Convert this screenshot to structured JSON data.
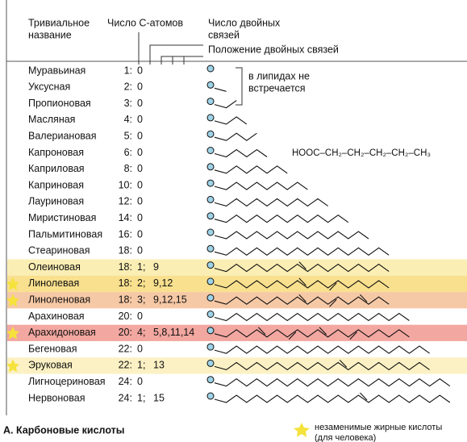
{
  "header": {
    "name_line1": "Тривиальное",
    "name_line2": "название",
    "carbons": "Число С-атомов",
    "double_bonds_line1": "Число двойных",
    "double_bonds_line2": "связей",
    "positions": "Положение двойных связей"
  },
  "table": {
    "rows": [
      {
        "name": "Муравьиная",
        "c": "1:",
        "db": "0",
        "pos": ""
      },
      {
        "name": "Уксусная",
        "c": "2:",
        "db": "0",
        "pos": ""
      },
      {
        "name": "Пропионовая",
        "c": "3:",
        "db": "0",
        "pos": ""
      },
      {
        "name": "Масляная",
        "c": "4:",
        "db": "0",
        "pos": ""
      },
      {
        "name": "Валериановая",
        "c": "5:",
        "db": "0",
        "pos": ""
      },
      {
        "name": "Капроновая",
        "c": "6:",
        "db": "0",
        "pos": ""
      },
      {
        "name": "Каприловая",
        "c": "8:",
        "db": "0",
        "pos": ""
      },
      {
        "name": "Каприновая",
        "c": "10:",
        "db": "0",
        "pos": ""
      },
      {
        "name": "Лауриновая",
        "c": "12:",
        "db": "0",
        "pos": ""
      },
      {
        "name": "Миристиновая",
        "c": "14:",
        "db": "0",
        "pos": ""
      },
      {
        "name": "Пальмитиновая",
        "c": "16:",
        "db": "0",
        "pos": ""
      },
      {
        "name": "Стеариновая",
        "c": "18:",
        "db": "0",
        "pos": ""
      },
      {
        "name": "Олеиновая",
        "c": "18:",
        "db": "1;",
        "pos": "9",
        "highlight": "#fbeeb4"
      },
      {
        "name": "Линолевая",
        "c": "18:",
        "db": "2;",
        "pos": "9,12",
        "highlight": "#f9e08e",
        "essential": true
      },
      {
        "name": "Линоленовая",
        "c": "18:",
        "db": "3;",
        "pos": "9,12,15",
        "highlight": "#f6c9a6",
        "essential": true
      },
      {
        "name": "Арахиновая",
        "c": "20:",
        "db": "0",
        "pos": ""
      },
      {
        "name": "Арахидоновая",
        "c": "20:",
        "db": "4;",
        "pos": "5,8,11,14",
        "highlight": "#f2a7a0",
        "essential": true
      },
      {
        "name": "Бегеновая",
        "c": "22:",
        "db": "0",
        "pos": ""
      },
      {
        "name": "Эруковая",
        "c": "22:",
        "db": "1;",
        "pos": "13",
        "highlight": "#fbf1c4",
        "essential": true
      },
      {
        "name": "Лигноцериновая",
        "c": "24:",
        "db": "0",
        "pos": ""
      },
      {
        "name": "Нервоновая",
        "c": "24:",
        "db": "1;",
        "pos": "15"
      }
    ]
  },
  "annotation": {
    "line1": "в липидах не",
    "line2": "встречается"
  },
  "formula": "HOOC–CH₂–CH₂–CH₂–CH₂–CH₃",
  "footer": {
    "caption": "A. Карбоновые кислоты",
    "legend_line1": "незаменимые жирные кислоты",
    "legend_line2": "(для человека)"
  }
}
